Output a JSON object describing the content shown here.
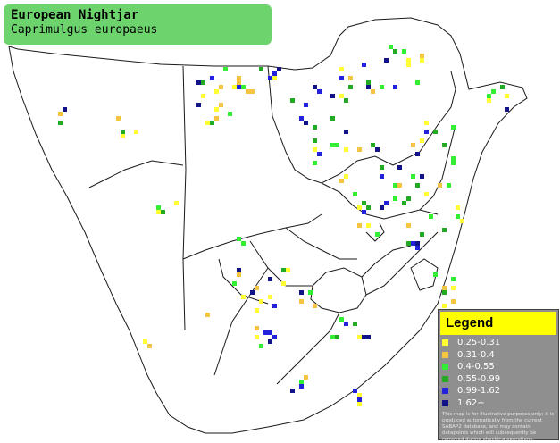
{
  "title": {
    "common_name": "European Nightjar",
    "scientific_name": "Caprimulgus europaeus"
  },
  "legend": {
    "heading": "Legend",
    "items": [
      {
        "label": "0.25-0.31",
        "color": "#ffff33"
      },
      {
        "label": "0.31-0.4",
        "color": "#f5c542"
      },
      {
        "label": "0.4-0.55",
        "color": "#33ee33"
      },
      {
        "label": "0.55-0.99",
        "color": "#22aa22"
      },
      {
        "label": "0.99-1.62",
        "color": "#2222dd"
      },
      {
        "label": "1.62+",
        "color": "#121289"
      }
    ],
    "disclaimer": "This map is for illustrative purposes only; it is produced automatically from the current SABAP2 database, and may contain datapoints which will subsequently be removed during checking operations."
  },
  "colors": {
    "title_bg": "#6dd36d",
    "legend_bg": "#8f8f8f",
    "legend_header_bg": "#ffff00",
    "border": "#222222"
  }
}
